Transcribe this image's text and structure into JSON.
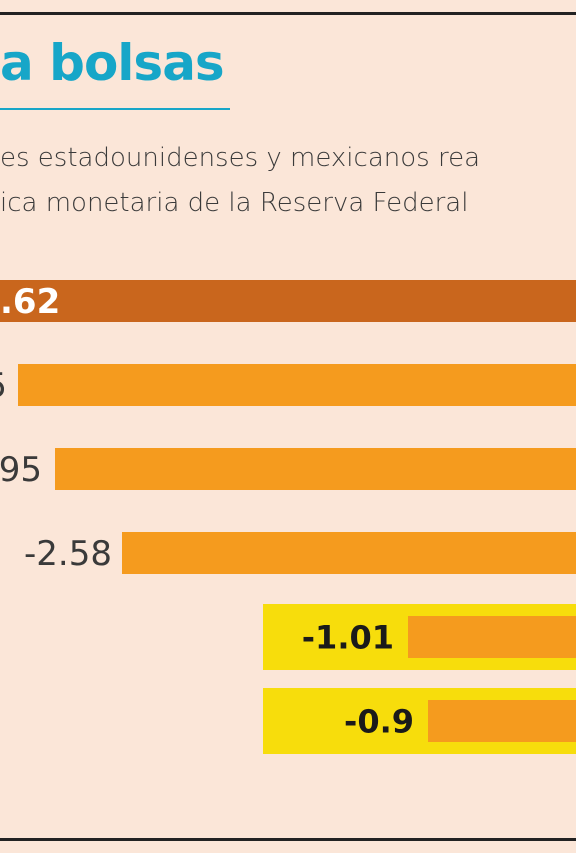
{
  "header": {
    "title": "a bolsas",
    "subtitle_line1": "es estadounidenses y mexicanos rea",
    "subtitle_line2": "ica monetaria de la Reserva Federal"
  },
  "colors": {
    "title": "#17a6c8",
    "bar_top": "#c9661d",
    "bar": "#f59b1e",
    "highlight": "#f7dd0c",
    "label_dark": "#1a1a1a",
    "label_light": "#3a3a3a",
    "label_on_bar": "#ffffff"
  },
  "chart_data": {
    "type": "bar",
    "orientation": "horizontal",
    "value_labels": [
      ".62",
      "5",
      "95",
      "-2.58",
      "-1.01",
      "-0.9"
    ],
    "values": [
      null,
      null,
      null,
      -2.58,
      -1.01,
      -0.9
    ],
    "highlighted": [
      false,
      false,
      false,
      false,
      true,
      true
    ],
    "grid": false
  }
}
